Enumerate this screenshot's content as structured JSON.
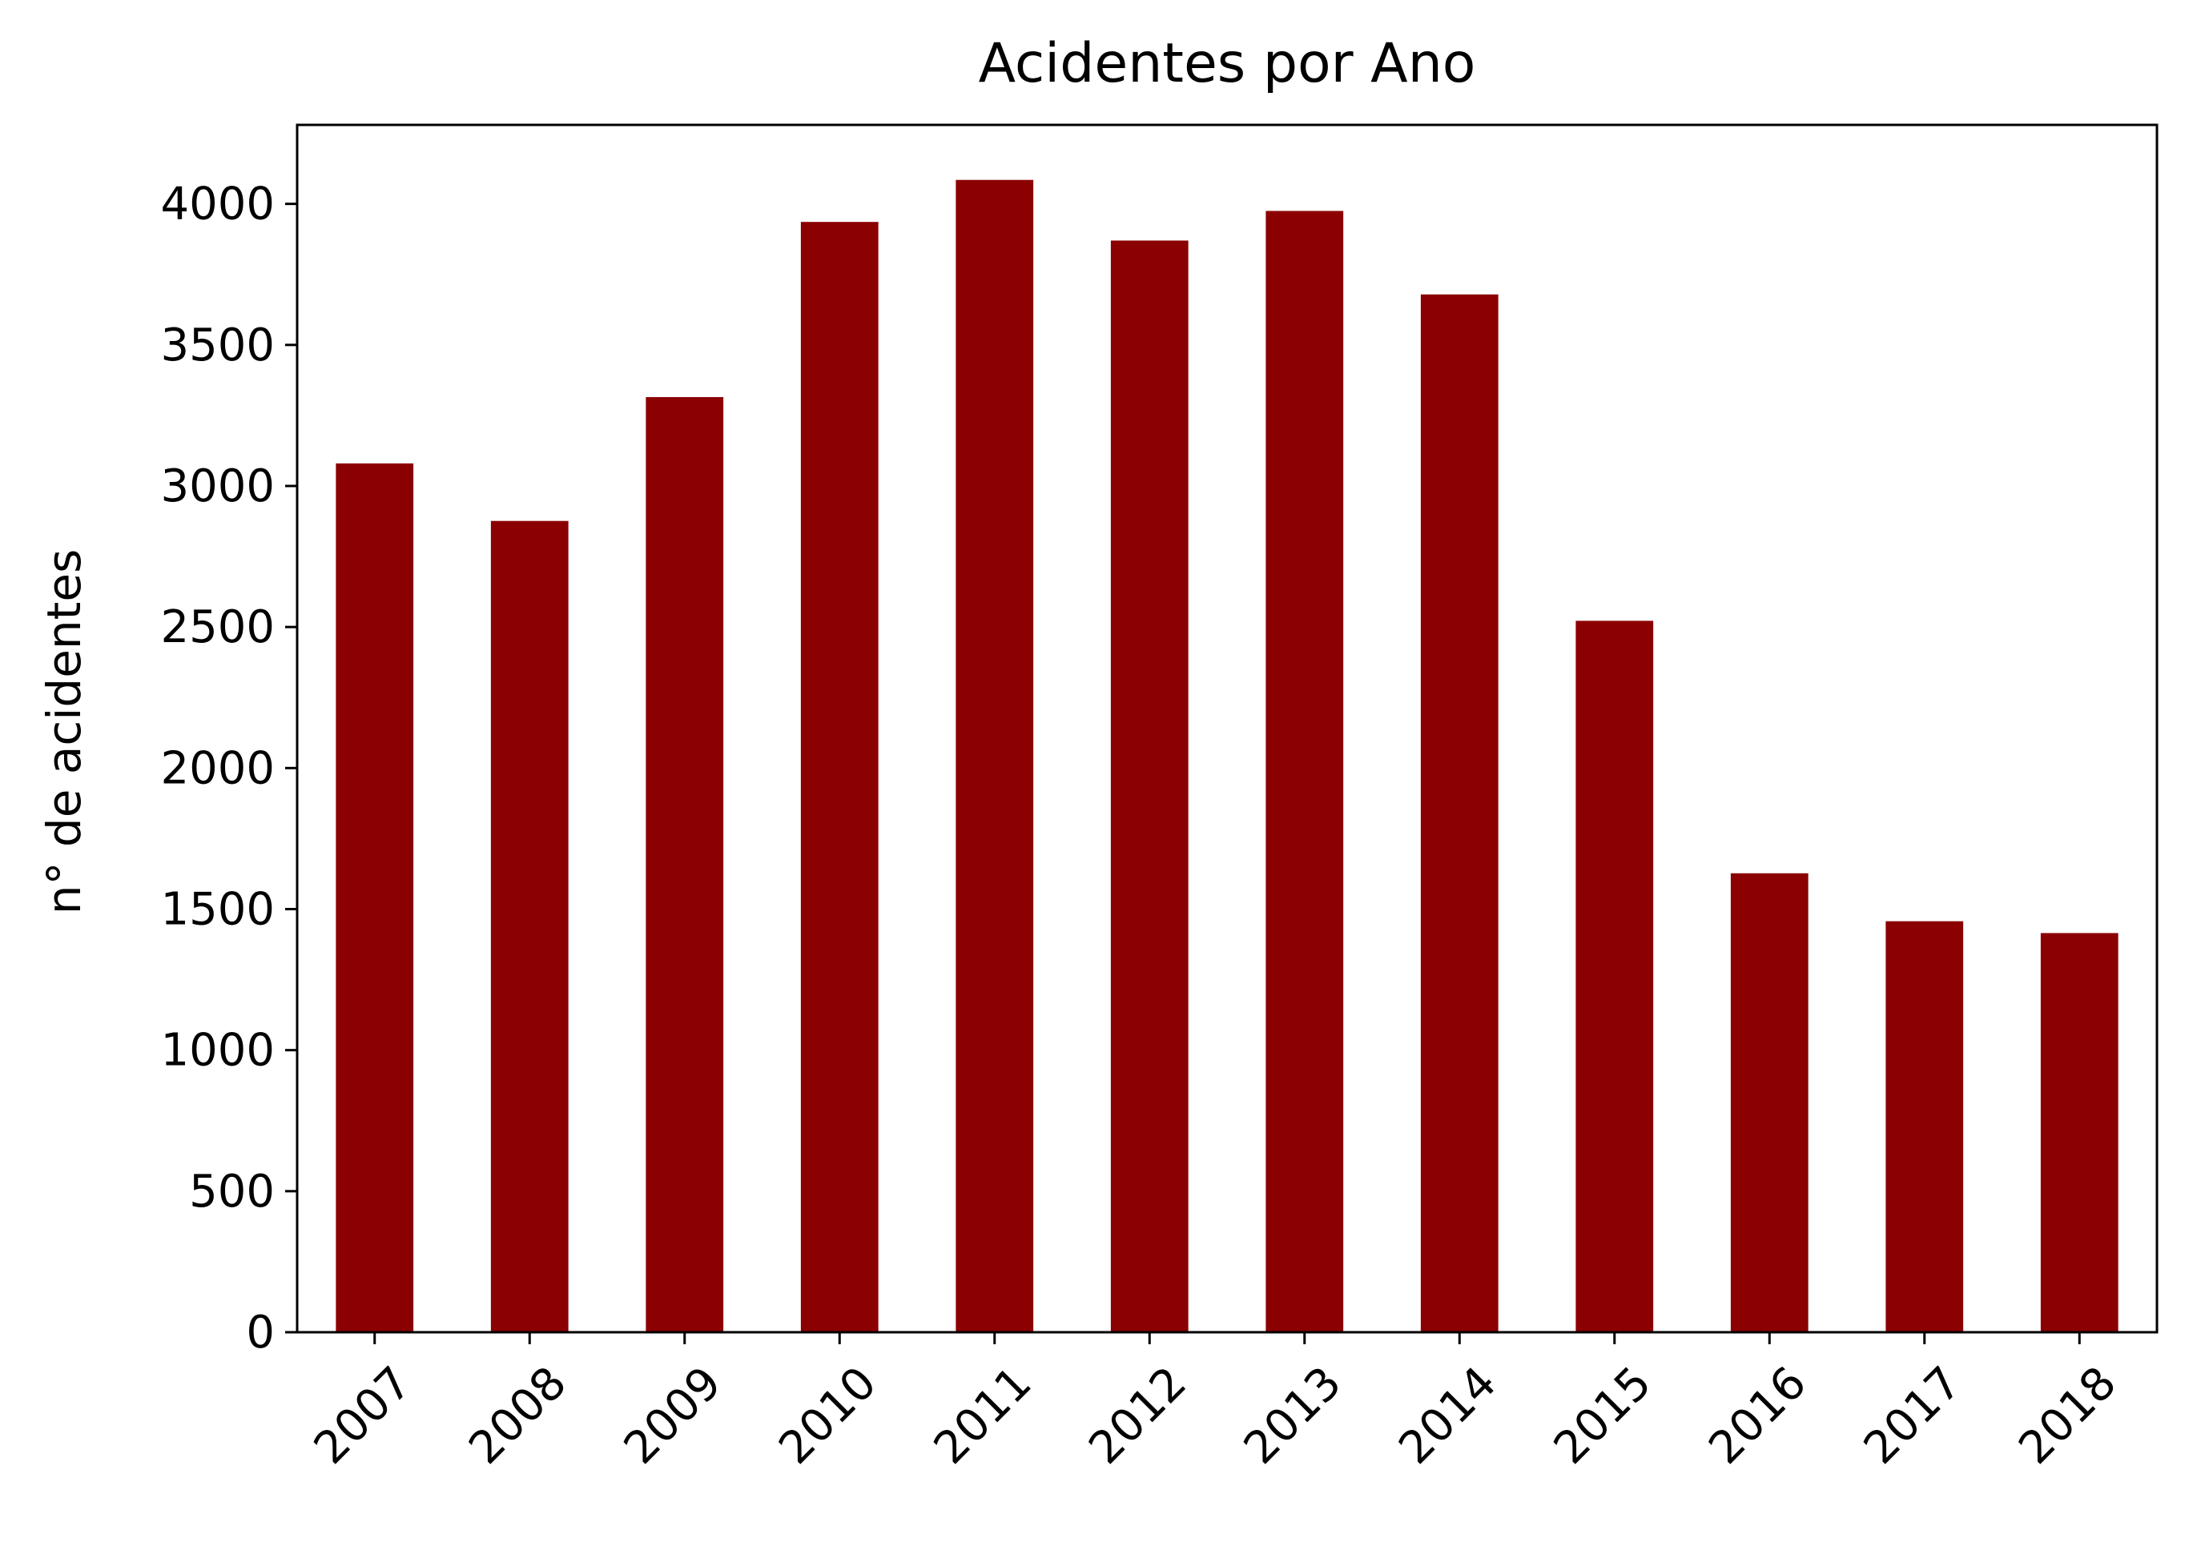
{
  "chart_data": {
    "type": "bar",
    "title": "Acidentes por Ano",
    "xlabel": "",
    "ylabel": "n° de acidentes",
    "categories": [
      "2007",
      "2008",
      "2009",
      "2010",
      "2011",
      "2012",
      "2013",
      "2014",
      "2015",
      "2016",
      "2017",
      "2018"
    ],
    "values": [
      3080,
      2876,
      3315,
      3936,
      4085,
      3870,
      3975,
      3679,
      2522,
      1627,
      1457,
      1415
    ],
    "ylim": [
      0,
      4280
    ],
    "yticks": [
      0,
      500,
      1000,
      1500,
      2000,
      2500,
      3000,
      3500,
      4000
    ],
    "ytick_labels": [
      "0",
      "500",
      "1000",
      "1500",
      "2000",
      "2500",
      "3000",
      "3500",
      "4000"
    ],
    "bar_color": "#8b0000",
    "grid": false,
    "xtick_rotation": 45
  }
}
